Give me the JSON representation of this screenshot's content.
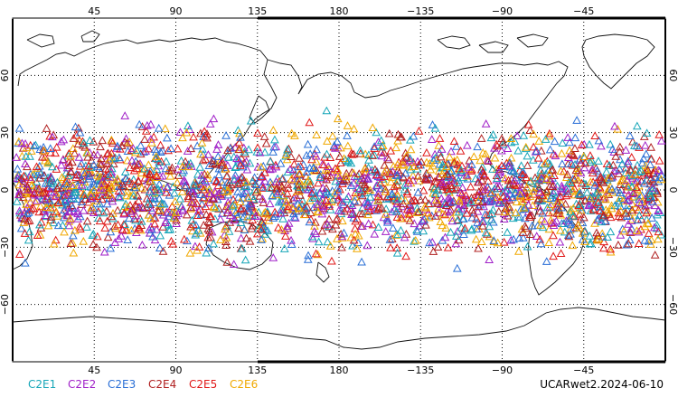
{
  "map": {
    "projection": "cylindrical-equidistant",
    "center_longitude": 180,
    "lon_range": [
      0,
      360
    ],
    "lat_range": [
      -90,
      90
    ],
    "gridlines": "dotted",
    "top_lon_ticks": [
      "45",
      "90",
      "135",
      "180",
      "−135",
      "−90",
      "−45"
    ],
    "bottom_lon_ticks": [
      "45",
      "90",
      "135",
      "180",
      "−135",
      "−90",
      "−45"
    ],
    "lat_ticks": [
      "60",
      "30",
      "0",
      "−30",
      "−60"
    ]
  },
  "marker": {
    "shape": "open-triangle",
    "lat_band": [
      -45,
      45
    ]
  },
  "legend": [
    {
      "label": "C2E1",
      "color": "#17a6b8"
    },
    {
      "label": "C2E2",
      "color": "#a020c8"
    },
    {
      "label": "C2E3",
      "color": "#2a6fd6"
    },
    {
      "label": "C2E4",
      "color": "#b02020"
    },
    {
      "label": "C2E5",
      "color": "#e01818"
    },
    {
      "label": "C2E6",
      "color": "#f0a800"
    }
  ],
  "footer": {
    "product": "UCARwet2.2024-06-10"
  }
}
